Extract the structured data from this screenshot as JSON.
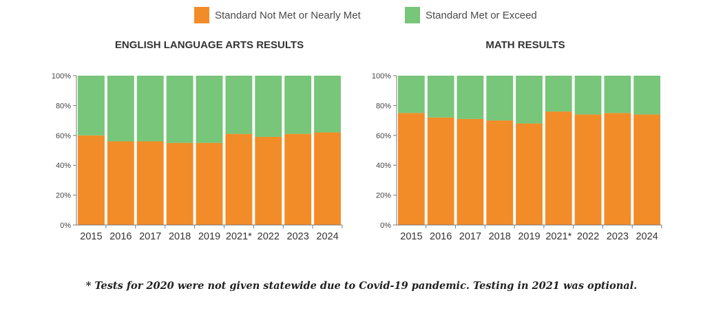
{
  "legend": [
    {
      "label": "Standard Not Met or Nearly Met",
      "color": "#f28c28"
    },
    {
      "label": "Standard Met or Exceed",
      "color": "#77c679"
    }
  ],
  "footnote": "* Tests for 2020 were not given statewide due to Covid-19 pandemic. Testing in 2021 was optional.",
  "chart_data": [
    {
      "type": "bar",
      "stacked": true,
      "title": "ENGLISH LANGUAGE ARTS RESULTS",
      "categories": [
        "2015",
        "2016",
        "2017",
        "2018",
        "2019",
        "2021*",
        "2022",
        "2023",
        "2024"
      ],
      "series": [
        {
          "name": "Standard Not Met or Nearly Met",
          "values": [
            60,
            56,
            56,
            55,
            55,
            61,
            59,
            61,
            62
          ]
        },
        {
          "name": "Standard Met or Exceed",
          "values": [
            40,
            44,
            44,
            45,
            45,
            39,
            41,
            39,
            38
          ]
        }
      ],
      "yticks": [
        "0%",
        "20%",
        "40%",
        "60%",
        "80%",
        "100%"
      ],
      "ylim": [
        0,
        100
      ],
      "grid": false
    },
    {
      "type": "bar",
      "stacked": true,
      "title": "MATH RESULTS",
      "categories": [
        "2015",
        "2016",
        "2017",
        "2018",
        "2019",
        "2021*",
        "2022",
        "2023",
        "2024"
      ],
      "series": [
        {
          "name": "Standard Not Met or Nearly Met",
          "values": [
            75,
            72,
            71,
            70,
            68,
            76,
            74,
            75,
            74
          ]
        },
        {
          "name": "Standard Met or Exceed",
          "values": [
            25,
            28,
            29,
            30,
            32,
            24,
            26,
            25,
            26
          ]
        }
      ],
      "yticks": [
        "0%",
        "20%",
        "40%",
        "60%",
        "80%",
        "100%"
      ],
      "ylim": [
        0,
        100
      ],
      "grid": false
    }
  ]
}
